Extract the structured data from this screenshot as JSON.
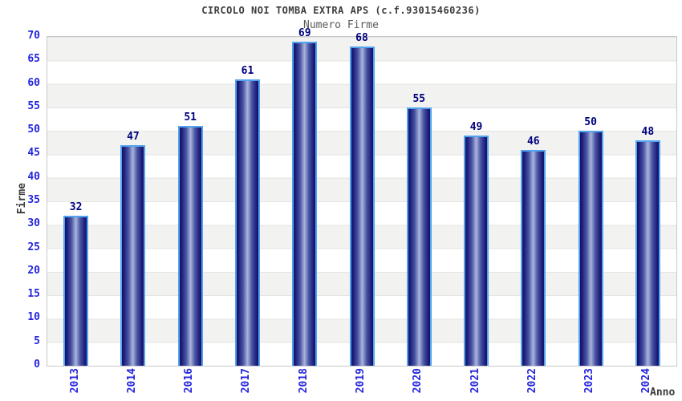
{
  "title": "CIRCOLO NOI TOMBA EXTRA APS (c.f.93015460236)",
  "subtitle": "Numero Firme",
  "chart_data": {
    "type": "bar",
    "categories": [
      "2013",
      "2014",
      "2016",
      "2017",
      "2018",
      "2019",
      "2020",
      "2021",
      "2022",
      "2023",
      "2024"
    ],
    "values": [
      32,
      47,
      51,
      61,
      69,
      68,
      55,
      49,
      46,
      50,
      48
    ],
    "title": "CIRCOLO NOI TOMBA EXTRA APS (c.f.93015460236)",
    "subtitle": "Numero Firme",
    "xlabel": "Anno",
    "ylabel": "Firme",
    "ylim": [
      0,
      70
    ],
    "y_ticks": [
      0,
      5,
      10,
      15,
      20,
      25,
      30,
      35,
      40,
      45,
      50,
      55,
      60,
      65,
      70
    ],
    "grid": "horizontal-bands-alternating",
    "legend": "none",
    "value_labels": "above-bars",
    "x_tick_rotation": "vertical-bottom-to-top"
  },
  "colors": {
    "title": "#3c3c3c",
    "subtitle": "#5a5a5a",
    "tick_label": "#2525dd",
    "value_label": "#00007d",
    "axis_label": "#3c3c3c",
    "bar_dark": "#131368",
    "bar_light": "#aab5dc",
    "bar_border": "#52a3ee",
    "band_gray": "#f2f2f1",
    "plot_border": "#c8c8c8"
  }
}
